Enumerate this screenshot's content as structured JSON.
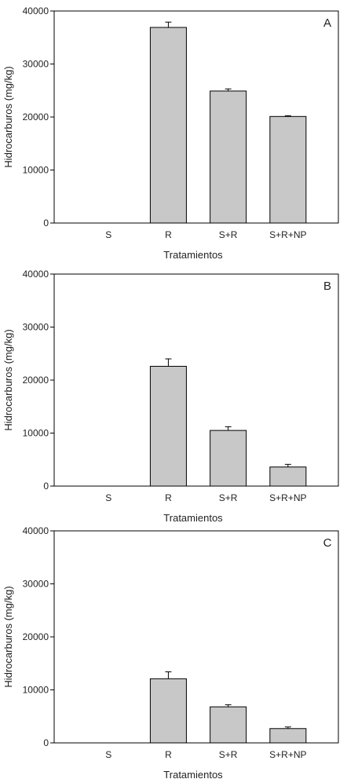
{
  "chart_data": [
    {
      "type": "bar",
      "panel_label": "A",
      "categories": [
        "S",
        "R",
        "S+R",
        "S+R+NP"
      ],
      "values": [
        0,
        36900,
        24900,
        20100
      ],
      "errors": [
        0,
        1000,
        400,
        150
      ],
      "xlabel": "Tratamientos",
      "ylabel": "Hidrocarburos (mg/kg)",
      "ylim": [
        0,
        40000
      ],
      "yticks": [
        0,
        10000,
        20000,
        30000,
        40000
      ],
      "bar_color": "#c8c8c8"
    },
    {
      "type": "bar",
      "panel_label": "B",
      "categories": [
        "S",
        "R",
        "S+R",
        "S+R+NP"
      ],
      "values": [
        0,
        22600,
        10500,
        3600
      ],
      "errors": [
        0,
        1400,
        700,
        500
      ],
      "xlabel": "Tratamientos",
      "ylabel": "Hidrocarburos (mg/kg)",
      "ylim": [
        0,
        40000
      ],
      "yticks": [
        0,
        10000,
        20000,
        30000,
        40000
      ],
      "bar_color": "#c8c8c8"
    },
    {
      "type": "bar",
      "panel_label": "C",
      "categories": [
        "S",
        "R",
        "S+R",
        "S+R+NP"
      ],
      "values": [
        0,
        12100,
        6800,
        2700
      ],
      "errors": [
        0,
        1300,
        400,
        300
      ],
      "xlabel": "Tratamientos",
      "ylabel": "Hidrocarburos (mg/kg)",
      "ylim": [
        0,
        40000
      ],
      "yticks": [
        0,
        10000,
        20000,
        30000,
        40000
      ],
      "bar_color": "#c8c8c8"
    }
  ]
}
